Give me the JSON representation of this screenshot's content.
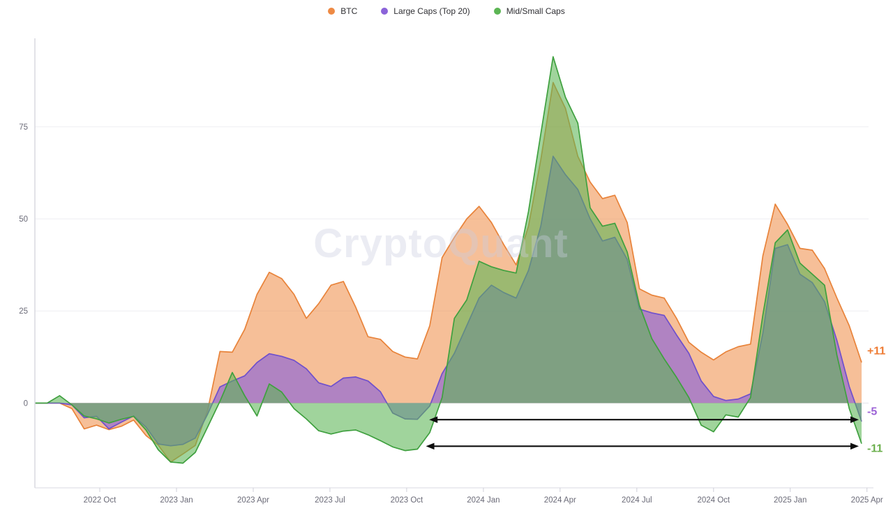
{
  "legend": {
    "items": [
      {
        "id": "btc",
        "label": "BTC",
        "color": "#ee8a44"
      },
      {
        "id": "large-caps",
        "label": "Large Caps (Top 20)",
        "color": "#8b63d9"
      },
      {
        "id": "mid-small-caps",
        "label": "Mid/Small Caps",
        "color": "#5cb554"
      }
    ]
  },
  "chart_data": {
    "type": "area",
    "title": "",
    "watermark": "CryptoQuant",
    "x_ticks": [
      "2022 Oct",
      "2023 Jan",
      "2023 Apr",
      "2023 Jul",
      "2023 Oct",
      "2024 Jan",
      "2024 Apr",
      "2024 Jul",
      "2024 Oct",
      "2025 Jan",
      "2025 Apr"
    ],
    "y_ticks": [
      0,
      25,
      50,
      75
    ],
    "ylim": [
      -23,
      99
    ],
    "x_range_note": "weekly-ish samples, ~2022 Jul to 2025 Apr, evenly spaced",
    "series": [
      {
        "name": "BTC",
        "line_color": "#e8833a",
        "fill_color": "#ee8a44",
        "fill_opacity": 0.55,
        "values": [
          0,
          0,
          0,
          -1.5,
          -7,
          -6,
          -7.2,
          -6.3,
          -4.6,
          -8.8,
          -11.4,
          -16,
          -13.8,
          -11.5,
          -2,
          14,
          13.8,
          20,
          29.5,
          35.5,
          33.8,
          29.5,
          23,
          27,
          32,
          33,
          26,
          18,
          17.3,
          14,
          12.5,
          12,
          21,
          39.5,
          45,
          50,
          53.4,
          49,
          43,
          37.5,
          48,
          66,
          87,
          80,
          67,
          60,
          55.5,
          56.4,
          49,
          31,
          29.3,
          28.5,
          23,
          16.5,
          13.8,
          11.7,
          13.9,
          15.3,
          16,
          40,
          54,
          48.5,
          42,
          41.5,
          36.5,
          28.5,
          21,
          11
        ]
      },
      {
        "name": "Large Caps (Top 20)",
        "line_color": "#6f50cc",
        "fill_color": "#8b63d9",
        "fill_opacity": 0.65,
        "values": [
          0,
          0,
          0,
          -0.5,
          -4,
          -3.6,
          -7,
          -5.2,
          -3.5,
          -6.5,
          -11.1,
          -11.6,
          -11.2,
          -9.5,
          -3,
          4.4,
          6,
          7.4,
          11,
          13.4,
          12.7,
          11.6,
          9.3,
          5.5,
          4.5,
          6.8,
          7.1,
          6,
          3.1,
          -2.7,
          -4.3,
          -4.4,
          -0.8,
          8,
          13.5,
          21,
          28.5,
          32,
          30,
          28.5,
          36,
          48,
          67,
          62,
          58,
          50,
          44,
          45,
          39,
          25.5,
          24.5,
          23.8,
          18.5,
          13.5,
          6,
          1.8,
          0.7,
          1.1,
          2.5,
          19,
          42,
          43,
          35,
          32.7,
          27.5,
          17,
          4.5,
          -5
        ]
      },
      {
        "name": "Mid/Small Caps",
        "line_color": "#3fa03f",
        "fill_color": "#5cb554",
        "fill_opacity": 0.58,
        "values": [
          0,
          0,
          2,
          -0.5,
          -3.5,
          -4.3,
          -5.4,
          -4.4,
          -3.6,
          -7.3,
          -12.7,
          -16,
          -16.3,
          -13.4,
          -6.5,
          0.5,
          8.3,
          2,
          -3.5,
          5.2,
          3,
          -1.5,
          -4.3,
          -7.5,
          -8.4,
          -7.6,
          -7.3,
          -8.6,
          -10.2,
          -11.9,
          -12.9,
          -12.5,
          -8,
          1.5,
          23,
          28,
          38.5,
          37,
          36,
          35.3,
          52,
          73,
          94,
          83,
          76,
          53,
          48,
          48.8,
          41,
          26.5,
          17.5,
          12,
          7,
          1.5,
          -6,
          -7.8,
          -3.2,
          -3.8,
          1.5,
          24,
          43.5,
          47,
          38,
          35,
          32,
          13,
          -1.5,
          -11
        ]
      }
    ],
    "annotations": {
      "end_labels": [
        {
          "text": "+11",
          "color": "#ee7b33",
          "at_value": 14.2
        },
        {
          "text": "-5",
          "color": "#9c62d6",
          "at_value": -2.3
        },
        {
          "text": "-11",
          "color": "#6cb04e",
          "at_value": -12.3
        }
      ],
      "arrows": [
        {
          "x_frac_start": 0.477,
          "x_frac_end": 0.9966,
          "at_value": -4.5
        },
        {
          "x_frac_start": 0.473,
          "x_frac_end": 0.9966,
          "at_value": -11.7
        }
      ]
    },
    "layout_hints": {
      "x_first_tick_frac": 0.0785,
      "x_tick_step_frac": 0.0928,
      "legend_position": "top-center",
      "grid": "horizontal"
    }
  }
}
